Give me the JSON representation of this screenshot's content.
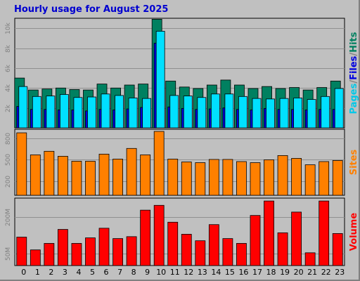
{
  "chart_data": {
    "type": "bar",
    "title": "Hourly usage for August 2025",
    "categories": [
      "0",
      "1",
      "2",
      "3",
      "4",
      "5",
      "6",
      "7",
      "8",
      "9",
      "10",
      "11",
      "12",
      "13",
      "14",
      "15",
      "16",
      "17",
      "18",
      "19",
      "20",
      "21",
      "22",
      "23"
    ],
    "panels": [
      {
        "id": "traffic",
        "ylim": [
          0,
          11000
        ],
        "yticks": [
          2000,
          4000,
          6000,
          8000,
          10000
        ],
        "ytick_labels": [
          "2k",
          "4k",
          "6k",
          "8k",
          "10k"
        ],
        "legend_parts": [
          {
            "text": "Pages",
            "color": "#00c8e8"
          },
          {
            "text": "/",
            "color": "#808080"
          },
          {
            "text": "Files",
            "color": "#0000e0"
          },
          {
            "text": "/",
            "color": "#808080"
          },
          {
            "text": "Hits",
            "color": "#008060"
          }
        ],
        "series": [
          {
            "name": "Hits",
            "color": "#008060",
            "values": [
              5000,
              3800,
              3900,
              4000,
              3850,
              3800,
              4400,
              4000,
              4300,
              4400,
              10900,
              4700,
              4100,
              3950,
              4300,
              4800,
              4300,
              3950,
              4150,
              3950,
              4050,
              3800,
              4050,
              4700
            ]
          },
          {
            "name": "Files",
            "color": "#0000e0",
            "values": [
              2150,
              1850,
              1850,
              1800,
              1800,
              1700,
              1850,
              1800,
              1900,
              2050,
              8500,
              2100,
              1950,
              1850,
              1900,
              2000,
              1850,
              1800,
              1950,
              1850,
              1850,
              1800,
              1850,
              1850
            ]
          },
          {
            "name": "Pages",
            "color": "#00e0ff",
            "values": [
              4150,
              3150,
              3200,
              3350,
              3050,
              3100,
              3400,
              3250,
              3000,
              2950,
              9700,
              3250,
              3200,
              3050,
              3400,
              3400,
              3150,
              2950,
              2900,
              2950,
              3000,
              2850,
              3150,
              3950
            ]
          }
        ]
      },
      {
        "id": "sites",
        "ylim": [
          0,
          930
        ],
        "yticks": [
          200,
          500,
          800
        ],
        "ytick_labels": [
          "200",
          "500",
          "800"
        ],
        "legend_parts": [
          {
            "text": "Sites",
            "color": "#ff8000"
          }
        ],
        "series": [
          {
            "name": "Sites",
            "color": "#ff8000",
            "values": [
              880,
              570,
              620,
              550,
              480,
              480,
              580,
              510,
              660,
              570,
              900,
              510,
              470,
              460,
              505,
              505,
              475,
              460,
              500,
              560,
              520,
              430,
              475,
              490
            ]
          }
        ]
      },
      {
        "id": "volume",
        "ylim": [
          0,
          280
        ],
        "yticks": [
          50,
          200
        ],
        "ytick_labels": [
          "50M",
          "200M"
        ],
        "legend_parts": [
          {
            "text": "Volume",
            "color": "#ff0000"
          }
        ],
        "series": [
          {
            "name": "Volume",
            "color": "#ff0000",
            "values": [
              118,
              65,
              92,
              150,
              92,
              115,
              155,
              112,
              120,
              230,
              250,
              180,
              130,
              103,
              170,
              112,
              92,
              208,
              268,
              136,
              222,
              53,
              268,
              133
            ]
          }
        ]
      }
    ]
  }
}
